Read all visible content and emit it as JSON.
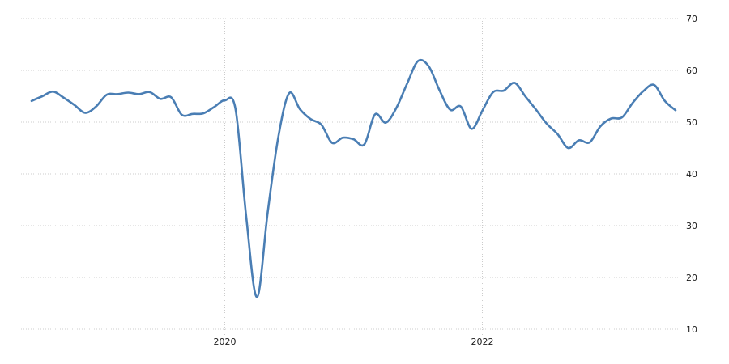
{
  "style": {
    "background": "#ffffff",
    "line_color": "#4a7eb4",
    "grid_color": "#cccccc",
    "label_color": "#1a1a1a"
  },
  "chart_data": {
    "type": "line",
    "title": "",
    "xlabel": "",
    "ylabel": "",
    "smooth": true,
    "grid": "dotted",
    "legend": false,
    "ylim": [
      10,
      70
    ],
    "yticks": [
      70,
      60,
      50,
      40,
      30,
      20,
      10
    ],
    "xticks": [
      "2020",
      "2022"
    ],
    "x": [
      "2018-07",
      "2018-08",
      "2018-09",
      "2018-10",
      "2018-11",
      "2018-12",
      "2019-01",
      "2019-02",
      "2019-03",
      "2019-04",
      "2019-05",
      "2019-06",
      "2019-07",
      "2019-08",
      "2019-09",
      "2019-10",
      "2019-11",
      "2019-12",
      "2020-01",
      "2020-02",
      "2020-03",
      "2020-04",
      "2020-05",
      "2020-06",
      "2020-07",
      "2020-08",
      "2020-09",
      "2020-10",
      "2020-11",
      "2020-12",
      "2021-01",
      "2021-02",
      "2021-03",
      "2021-04",
      "2021-05",
      "2021-06",
      "2021-07",
      "2021-08",
      "2021-09",
      "2021-10",
      "2021-11",
      "2021-12",
      "2022-01",
      "2022-02",
      "2022-03",
      "2022-04",
      "2022-05",
      "2022-06",
      "2022-07",
      "2022-08",
      "2022-09",
      "2022-10",
      "2022-11",
      "2022-12",
      "2023-01",
      "2023-02",
      "2023-03",
      "2023-04",
      "2023-05",
      "2023-06",
      "2023-07"
    ],
    "values": [
      54.1,
      55.0,
      55.9,
      54.7,
      53.3,
      51.8,
      53.0,
      55.3,
      55.4,
      55.7,
      55.4,
      55.8,
      54.5,
      54.8,
      51.4,
      51.6,
      51.7,
      52.9,
      54.2,
      52.5,
      31.7,
      16.2,
      32.6,
      47.3,
      55.6,
      52.5,
      50.6,
      49.5,
      46.0,
      47.0,
      46.7,
      45.7,
      51.5,
      49.9,
      52.8,
      57.5,
      61.8,
      60.8,
      56.2,
      52.4,
      53.0,
      48.7,
      52.2,
      55.8,
      56.1,
      57.6,
      55.0,
      52.4,
      49.7,
      47.7,
      45.0,
      46.5,
      46.1,
      49.2,
      50.7,
      50.9,
      53.7,
      56.0,
      57.2,
      54.1,
      52.3
    ]
  }
}
